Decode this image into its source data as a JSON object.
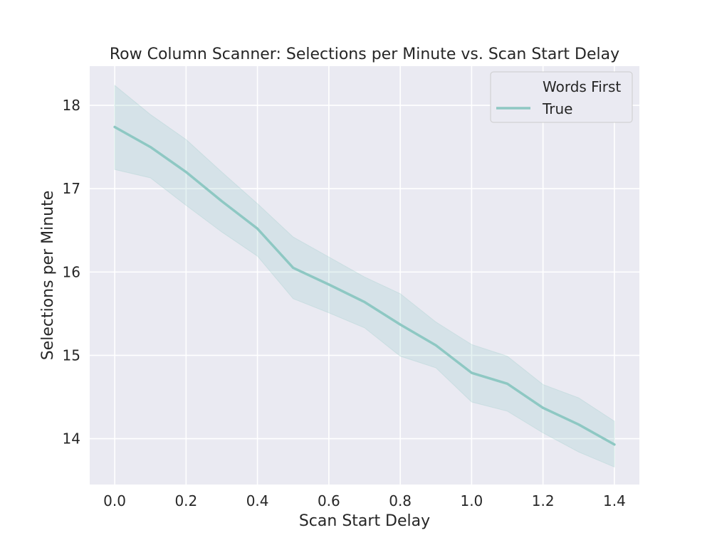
{
  "chart_data": {
    "type": "line",
    "title": "Row Column Scanner: Selections per Minute vs. Scan Start Delay",
    "xlabel": "Scan Start Delay",
    "ylabel": "Selections per Minute",
    "xlim": [
      -0.07,
      1.47
    ],
    "ylim": [
      13.45,
      18.47
    ],
    "xticks": [
      0.0,
      0.2,
      0.4,
      0.6,
      0.8,
      1.0,
      1.2,
      1.4
    ],
    "xtick_labels": [
      "0.0",
      "0.2",
      "0.4",
      "0.6",
      "0.8",
      "1.0",
      "1.2",
      "1.4"
    ],
    "yticks": [
      14,
      15,
      16,
      17,
      18
    ],
    "ytick_labels": [
      "14",
      "15",
      "16",
      "17",
      "18"
    ],
    "grid": true,
    "legend": {
      "title": "Words First",
      "placement": "top-right",
      "entries": [
        "True"
      ]
    },
    "x": [
      0.0,
      0.1,
      0.2,
      0.3,
      0.4,
      0.5,
      0.6,
      0.7,
      0.8,
      0.9,
      1.0,
      1.1,
      1.2,
      1.3,
      1.4
    ],
    "series": [
      {
        "name": "True",
        "color": "#8ec8c3",
        "values": [
          17.74,
          17.5,
          17.2,
          16.85,
          16.52,
          16.05,
          15.85,
          15.64,
          15.37,
          15.12,
          14.79,
          14.66,
          14.37,
          14.17,
          13.93
        ],
        "ci_lower": [
          17.23,
          17.13,
          16.8,
          16.48,
          16.19,
          15.68,
          15.51,
          15.33,
          14.99,
          14.85,
          14.44,
          14.33,
          14.07,
          13.84,
          13.66
        ],
        "ci_upper": [
          18.24,
          17.89,
          17.59,
          17.2,
          16.82,
          16.42,
          16.18,
          15.94,
          15.74,
          15.4,
          15.13,
          14.99,
          14.65,
          14.49,
          14.21
        ]
      }
    ]
  }
}
